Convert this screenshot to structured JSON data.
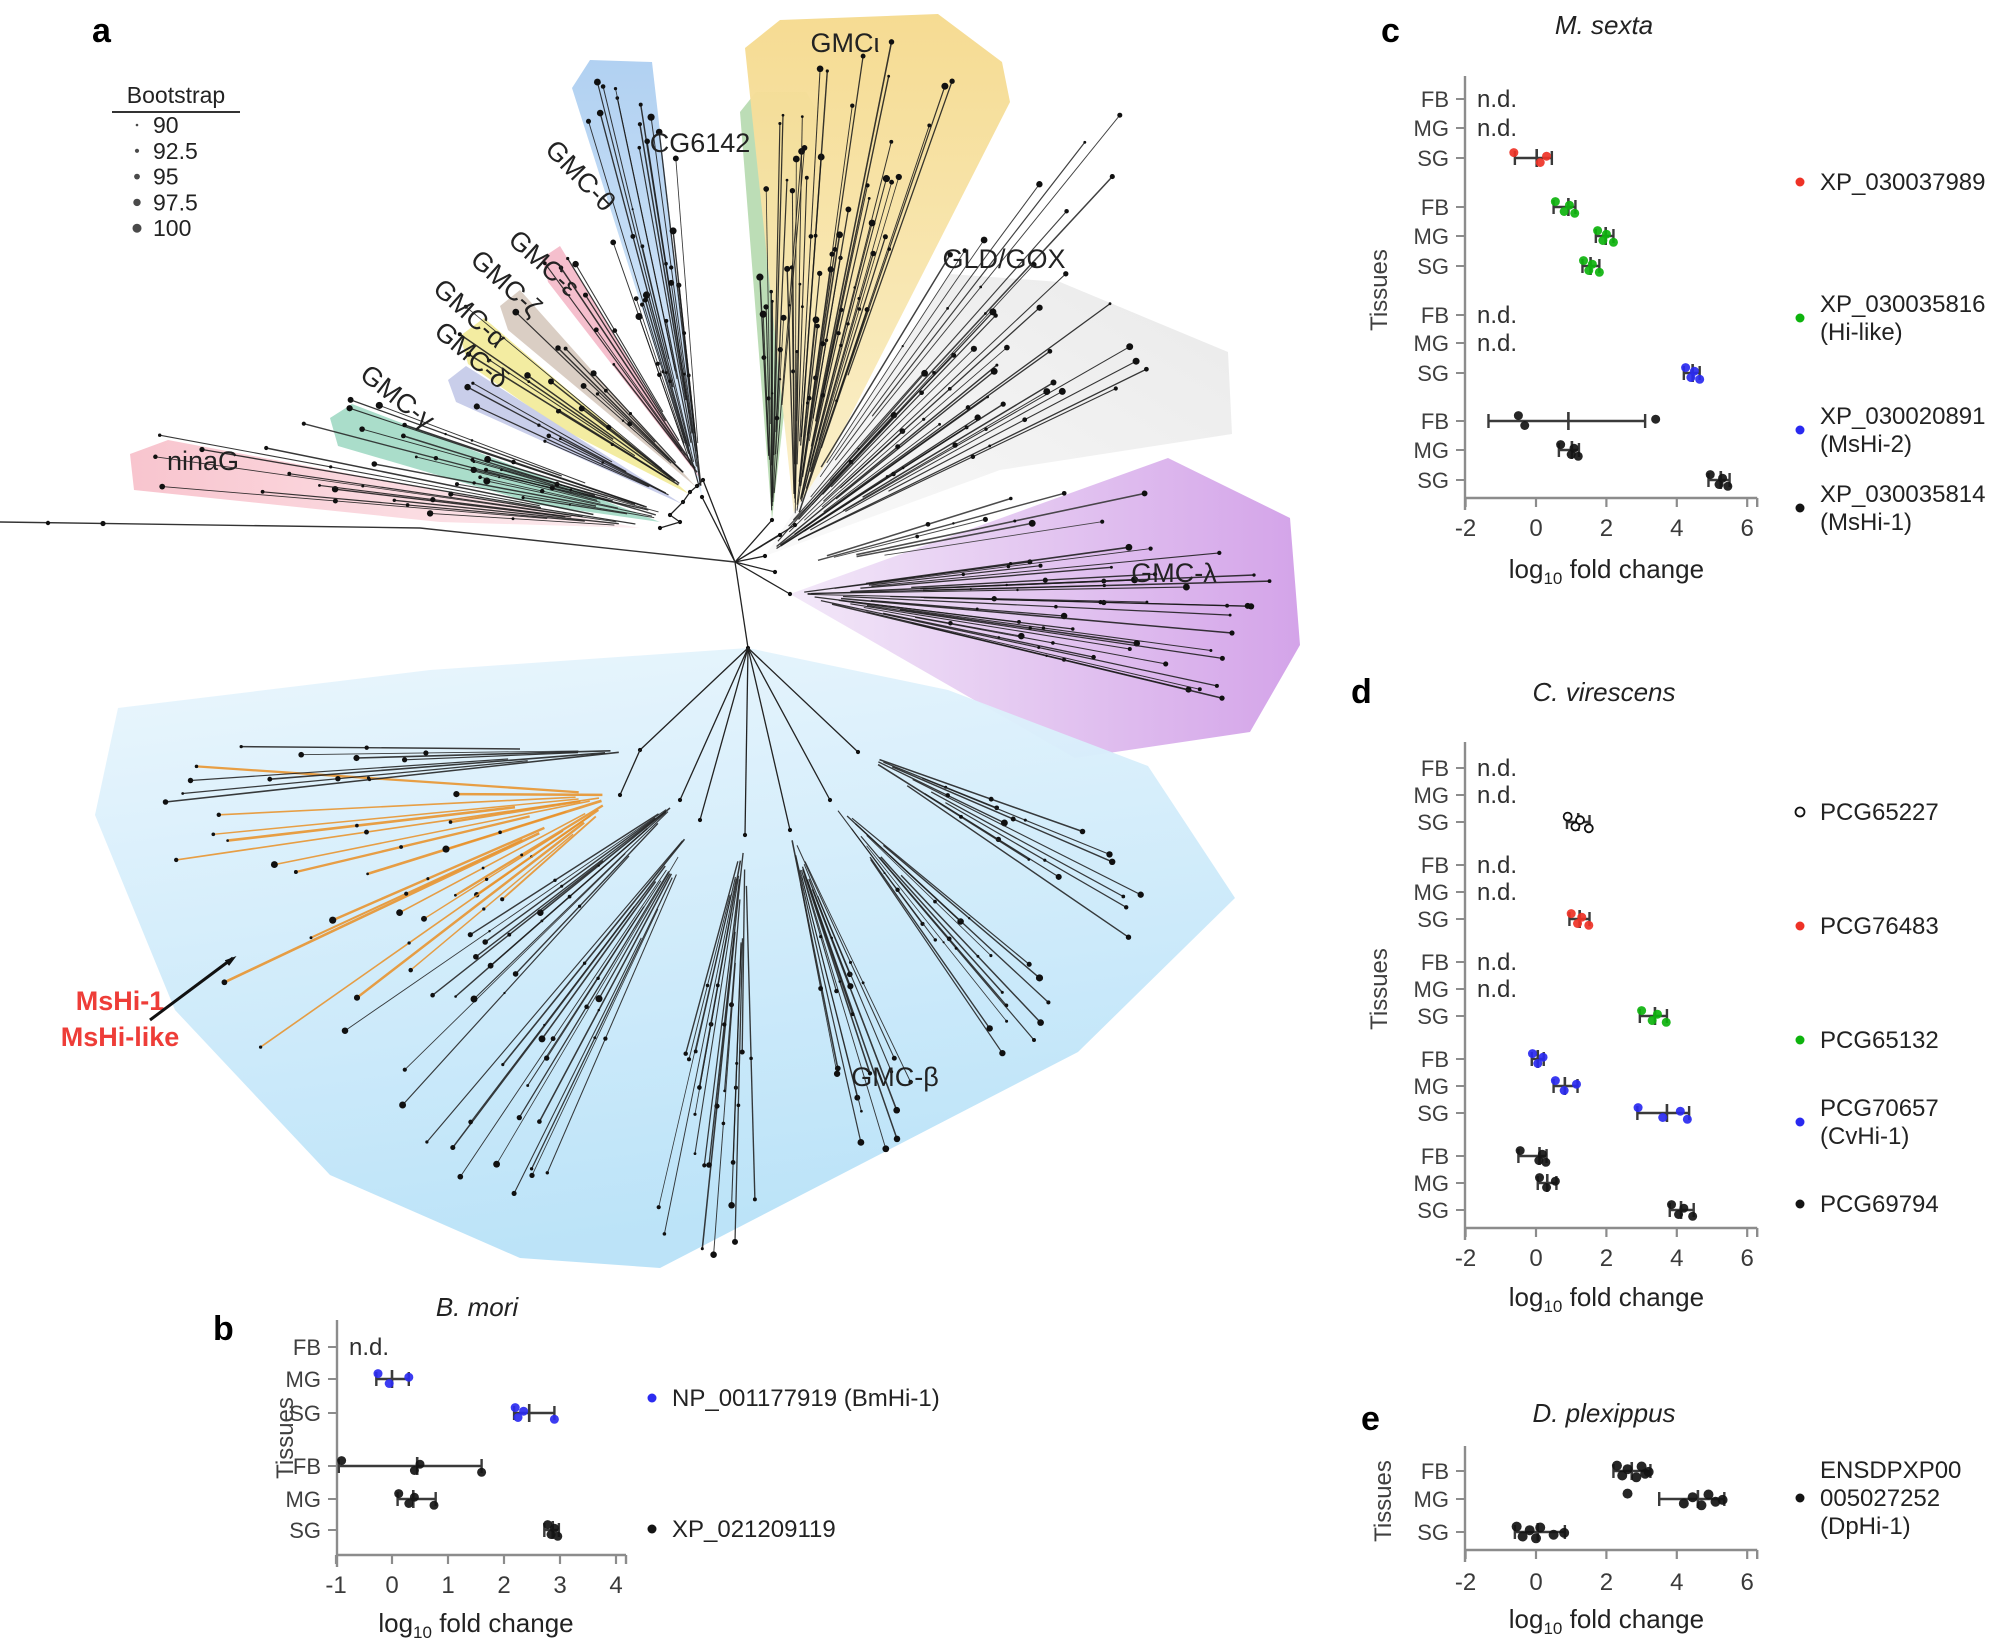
{
  "tree": {
    "panel_label": "a",
    "bootstrap": {
      "title": "Bootstrap",
      "values": [
        "90",
        "92.5",
        "95",
        "97.5",
        "100"
      ]
    },
    "clades": [
      {
        "id": "gmc_theta",
        "label": "GMC-θ",
        "color": "#b9d4f1"
      },
      {
        "id": "cg6142",
        "label": "CG6142",
        "color": "#b9dcb3"
      },
      {
        "id": "gmc_iota",
        "label": "GMCι",
        "color": "#f6e0a0"
      },
      {
        "id": "gld_gox",
        "label": "GLD/GOX",
        "color": "#ececec"
      },
      {
        "id": "gmc_epsilon",
        "label": "GMC-ε",
        "color": "#f5bccb"
      },
      {
        "id": "gmc_zeta",
        "label": "GMC-ζ",
        "color": "#d8ccc2"
      },
      {
        "id": "gmc_alpha",
        "label": "GMC-α",
        "color": "#f3eb9d"
      },
      {
        "id": "gmc_delta",
        "label": "GMC-δ",
        "color": "#c7cce9"
      },
      {
        "id": "gmc_gamma",
        "label": "GMC-γ",
        "color": "#a7dcc8"
      },
      {
        "id": "ninag",
        "label": "ninaG",
        "color": "#f9c8d1"
      },
      {
        "id": "gmc_lambda",
        "label": "GMC-λ",
        "color": "#d6a9e9"
      },
      {
        "id": "gmc_beta",
        "label": "GMC-β",
        "color": "#c7e7f9"
      }
    ],
    "highlight": {
      "lines": [
        "MsHi-1",
        "MsHi-like"
      ],
      "color": "#ee3d38",
      "branch_color": "#e8922a"
    }
  },
  "labels": {
    "nd": "n.d.",
    "xlabel_parts": {
      "pre": "log",
      "sub": "10",
      "post": " fold change"
    }
  },
  "chart_data": [
    {
      "panel_label": "b",
      "type": "scatter",
      "title": "B. mori",
      "xlabel": "log10 fold change",
      "ylabel": "Tissues",
      "xlim": [
        -1,
        4
      ],
      "xticks": [
        "-1",
        "0",
        "1",
        "2",
        "3",
        "4"
      ],
      "tissues": [
        "FB",
        "MG",
        "SG"
      ],
      "series": [
        {
          "name": "NP_001177919 (BmHi-1)",
          "legend_lines": [
            "NP_001177919 (BmHi-1)"
          ],
          "color": "#2b2bf0",
          "marker": "filled",
          "tissue_data": [
            {
              "tissue": "FB",
              "nd": true,
              "points": []
            },
            {
              "tissue": "MG",
              "points": [
                -0.25,
                -0.05,
                0.3
              ],
              "mean": 0.0,
              "range": [
                -0.28,
                0.3
              ]
            },
            {
              "tissue": "SG",
              "points": [
                2.2,
                2.25,
                2.35,
                2.9
              ],
              "mean": 2.45,
              "range": [
                2.18,
                2.9
              ]
            }
          ]
        },
        {
          "name": "XP_021209119",
          "legend_lines": [
            "XP_021209119"
          ],
          "color": "#141414",
          "marker": "filled",
          "tissue_data": [
            {
              "tissue": "FB",
              "points": [
                -0.9,
                0.4,
                0.5,
                1.6
              ],
              "mean": 0.45,
              "range": [
                -0.95,
                1.6
              ]
            },
            {
              "tissue": "MG",
              "points": [
                0.12,
                0.3,
                0.4,
                0.75
              ],
              "mean": 0.38,
              "range": [
                0.1,
                0.78
              ]
            },
            {
              "tissue": "SG",
              "points": [
                2.78,
                2.84,
                2.9,
                2.96
              ],
              "mean": 2.87,
              "range": [
                2.72,
                2.98
              ]
            }
          ]
        }
      ]
    },
    {
      "panel_label": "c",
      "type": "scatter",
      "title": "M. sexta",
      "xlabel": "log10 fold change",
      "ylabel": "Tissues",
      "xlim": [
        -2,
        6
      ],
      "xticks": [
        "-2",
        "0",
        "2",
        "4",
        "6"
      ],
      "tissues": [
        "FB",
        "MG",
        "SG"
      ],
      "series": [
        {
          "name": "XP_030037989",
          "legend_lines": [
            "XP_030037989"
          ],
          "color": "#ee3226",
          "marker": "filled",
          "tissue_data": [
            {
              "tissue": "FB",
              "nd": true,
              "points": []
            },
            {
              "tissue": "MG",
              "nd": true,
              "points": []
            },
            {
              "tissue": "SG",
              "points": [
                -0.63,
                0.12,
                0.3
              ],
              "mean": 0.02,
              "range": [
                -0.6,
                0.45
              ]
            }
          ]
        },
        {
          "name": "XP_030035816 (Hi-like)",
          "legend_lines": [
            "XP_030035816",
            "(Hi-like)"
          ],
          "color": "#0db30d",
          "marker": "filled",
          "tissue_data": [
            {
              "tissue": "FB",
              "points": [
                0.55,
                0.8,
                0.95,
                1.1
              ],
              "mean": 0.92,
              "range": [
                0.5,
                1.12
              ]
            },
            {
              "tissue": "MG",
              "points": [
                1.75,
                1.9,
                2.0,
                2.2
              ],
              "mean": 1.98,
              "range": [
                1.7,
                2.2
              ]
            },
            {
              "tissue": "SG",
              "points": [
                1.35,
                1.5,
                1.6,
                1.8
              ],
              "mean": 1.55,
              "range": [
                1.32,
                1.8
              ]
            }
          ]
        },
        {
          "name": "XP_030020891 (MsHi-2)",
          "legend_lines": [
            "XP_030020891",
            "(MsHi-2)"
          ],
          "color": "#2929f0",
          "marker": "filled",
          "tissue_data": [
            {
              "tissue": "FB",
              "nd": true,
              "points": []
            },
            {
              "tissue": "MG",
              "nd": true,
              "points": []
            },
            {
              "tissue": "SG",
              "points": [
                4.25,
                4.4,
                4.5,
                4.65
              ],
              "mean": 4.45,
              "range": [
                4.2,
                4.65
              ]
            }
          ]
        },
        {
          "name": "XP_030035814 (MsHi-1)",
          "legend_lines": [
            "XP_030035814",
            "(MsHi-1)"
          ],
          "color": "#141414",
          "marker": "filled",
          "tissue_data": [
            {
              "tissue": "FB",
              "points": [
                -0.5,
                -0.32,
                3.4
              ],
              "mean": 0.92,
              "range": [
                -1.35,
                3.1
              ]
            },
            {
              "tissue": "MG",
              "points": [
                0.7,
                1.0,
                1.08,
                1.2
              ],
              "mean": 1.02,
              "range": [
                0.65,
                1.22
              ]
            },
            {
              "tissue": "SG",
              "points": [
                4.95,
                5.2,
                5.3,
                5.45
              ],
              "mean": 5.25,
              "range": [
                4.9,
                5.5
              ]
            }
          ]
        }
      ]
    },
    {
      "panel_label": "d",
      "type": "scatter",
      "title": "C. virescens",
      "xlabel": "log10 fold change",
      "ylabel": "Tissues",
      "xlim": [
        -2,
        6
      ],
      "xticks": [
        "-2",
        "0",
        "2",
        "4",
        "6"
      ],
      "tissues": [
        "FB",
        "MG",
        "SG"
      ],
      "series": [
        {
          "name": "PCG65227",
          "legend_lines": [
            "PCG65227"
          ],
          "color": "#ffffff",
          "marker": "open",
          "tissue_data": [
            {
              "tissue": "FB",
              "nd": true,
              "points": []
            },
            {
              "tissue": "MG",
              "nd": true,
              "points": []
            },
            {
              "tissue": "SG",
              "points": [
                0.9,
                1.12,
                1.25,
                1.5
              ],
              "mean": 1.2,
              "range": [
                0.88,
                1.52
              ]
            }
          ]
        },
        {
          "name": "PCG76483",
          "legend_lines": [
            "PCG76483"
          ],
          "color": "#ee3226",
          "marker": "filled",
          "tissue_data": [
            {
              "tissue": "FB",
              "nd": true,
              "points": []
            },
            {
              "tissue": "MG",
              "nd": true,
              "points": []
            },
            {
              "tissue": "SG",
              "points": [
                1.0,
                1.18,
                1.3,
                1.5
              ],
              "mean": 1.24,
              "range": [
                0.95,
                1.52
              ]
            }
          ]
        },
        {
          "name": "PCG65132",
          "legend_lines": [
            "PCG65132"
          ],
          "color": "#0db30d",
          "marker": "filled",
          "tissue_data": [
            {
              "tissue": "FB",
              "nd": true,
              "points": []
            },
            {
              "tissue": "MG",
              "nd": true,
              "points": []
            },
            {
              "tissue": "SG",
              "points": [
                3.0,
                3.3,
                3.45,
                3.7
              ],
              "mean": 3.38,
              "range": [
                2.95,
                3.72
              ]
            }
          ]
        },
        {
          "name": "PCG70657 (CvHi-1)",
          "legend_lines": [
            "PCG70657",
            "(CvHi-1)"
          ],
          "color": "#2929f0",
          "marker": "filled",
          "tissue_data": [
            {
              "tissue": "FB",
              "points": [
                -0.1,
                0.05,
                0.2
              ],
              "mean": 0.05,
              "range": [
                -0.12,
                0.22
              ]
            },
            {
              "tissue": "MG",
              "points": [
                0.55,
                0.8,
                1.15
              ],
              "mean": 0.82,
              "range": [
                0.5,
                1.18
              ]
            },
            {
              "tissue": "SG",
              "points": [
                2.9,
                3.6,
                4.1,
                4.3
              ],
              "mean": 3.72,
              "range": [
                2.88,
                4.35
              ]
            }
          ]
        },
        {
          "name": "PCG69794",
          "legend_lines": [
            "PCG69794"
          ],
          "color": "#141414",
          "marker": "filled",
          "tissue_data": [
            {
              "tissue": "FB",
              "points": [
                -0.45,
                0.08,
                0.18,
                0.28
              ],
              "mean": 0.1,
              "range": [
                -0.5,
                0.3
              ]
            },
            {
              "tissue": "MG",
              "points": [
                0.1,
                0.3,
                0.55
              ],
              "mean": 0.32,
              "range": [
                0.05,
                0.58
              ]
            },
            {
              "tissue": "SG",
              "points": [
                3.85,
                4.05,
                4.2,
                4.45
              ],
              "mean": 4.12,
              "range": [
                3.8,
                4.48
              ]
            }
          ]
        }
      ]
    },
    {
      "panel_label": "e",
      "type": "scatter",
      "title": "D. plexippus",
      "xlabel": "log10 fold change",
      "ylabel": "Tissues",
      "xlim": [
        -2,
        6
      ],
      "xticks": [
        "-2",
        "0",
        "2",
        "4",
        "6"
      ],
      "tissues": [
        "FB",
        "MG",
        "SG"
      ],
      "series": [
        {
          "name": "ENSDPXP00005027252 (DpHi-1)",
          "legend_lines": [
            "ENSDPXP00",
            "005027252",
            "(DpHi-1)"
          ],
          "color": "#141414",
          "marker": "filled",
          "tissue_data": [
            {
              "tissue": "FB",
              "points": [
                2.3,
                2.45,
                2.6,
                2.85,
                3.0,
                3.1,
                3.2
              ],
              "mean": 2.72,
              "range": [
                2.2,
                3.25
              ]
            },
            {
              "tissue": "MG",
              "points": [
                2.6,
                4.2,
                4.45,
                4.7,
                4.9,
                5.1,
                5.3
              ],
              "mean": 4.6,
              "range": [
                3.5,
                5.35
              ]
            },
            {
              "tissue": "SG",
              "points": [
                -0.55,
                -0.38,
                -0.18,
                0.0,
                0.12,
                0.5,
                0.8
              ],
              "mean": 0.05,
              "range": [
                -0.6,
                0.82
              ]
            }
          ]
        }
      ]
    }
  ]
}
